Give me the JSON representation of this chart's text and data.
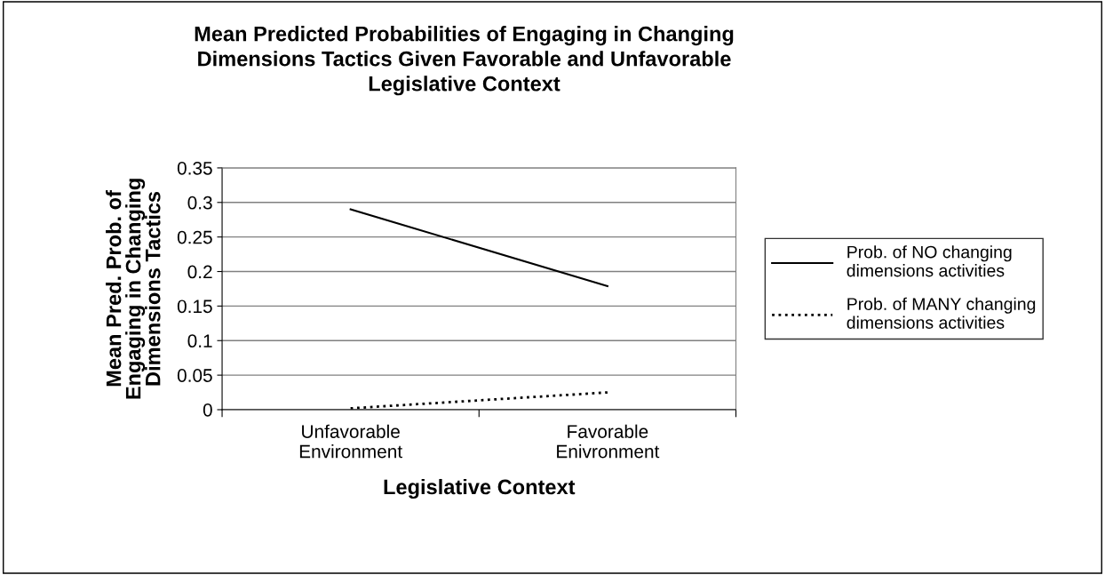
{
  "chart_data": {
    "type": "line",
    "title": "Mean Predicted Probabilities of Engaging in Changing\nDimensions Tactics Given Favorable and Unfavorable\nLegislative Context",
    "xlabel": "Legislative Context",
    "ylabel": "Mean Pred. Prob. of\nEngaging in Changing\nDimensions Tactics",
    "categories": [
      "Unfavorable\nEnvironment",
      "Favorable\nEnivronment"
    ],
    "series": [
      {
        "name": "Prob. of NO changing\ndimensions activities",
        "color": "#000000",
        "line_style": "solid",
        "values": [
          0.29,
          0.179
        ]
      },
      {
        "name": "Prob. of MANY changing\ndimensions activities",
        "color": "#000000",
        "line_style": "dotted",
        "values": [
          0.002,
          0.025
        ]
      }
    ],
    "ylim": [
      0,
      0.35
    ],
    "yticks": [
      0,
      0.05,
      0.1,
      0.15,
      0.2,
      0.25,
      0.3,
      0.35
    ],
    "grid": "y",
    "legend": "right",
    "marker": "none"
  }
}
